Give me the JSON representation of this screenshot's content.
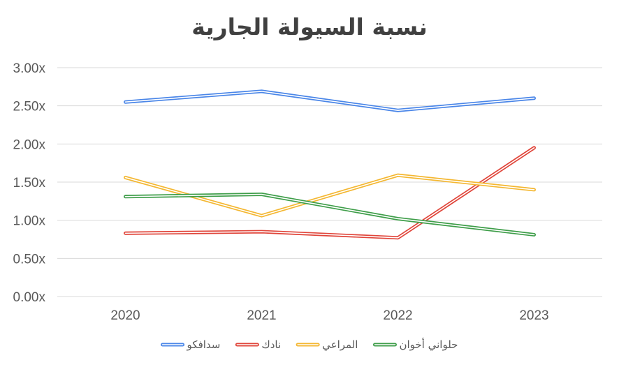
{
  "chart_data": {
    "type": "line",
    "title": "نسبة السيولة الجارية",
    "categories": [
      "2020",
      "2021",
      "2022",
      "2023"
    ],
    "y_ticks": [
      "0.00x",
      "0.50x",
      "1.00x",
      "1.50x",
      "2.00x",
      "2.50x",
      "3.00x"
    ],
    "ylim": [
      0,
      3
    ],
    "grid": true,
    "legend_position": "bottom",
    "series": [
      {
        "name": "سدافكو",
        "color": "#4a86e8",
        "values": [
          2.55,
          2.69,
          2.44,
          2.6
        ]
      },
      {
        "name": "نادك",
        "color": "#e0453a",
        "values": [
          0.83,
          0.85,
          0.77,
          1.95
        ]
      },
      {
        "name": "المراعي",
        "color": "#f4b731",
        "values": [
          1.56,
          1.06,
          1.59,
          1.4
        ]
      },
      {
        "name": "حلواني أخوان",
        "color": "#3f9e4a",
        "values": [
          1.31,
          1.34,
          1.02,
          0.81
        ]
      }
    ]
  }
}
